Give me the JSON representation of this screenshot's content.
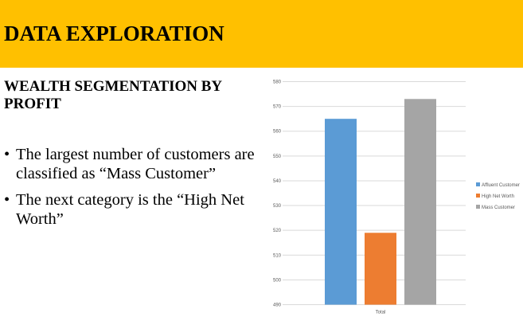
{
  "header": {
    "title": "DATA EXPLORATION",
    "background": "#FFC000"
  },
  "section": {
    "subtitle": "WEALTH SEGMENTATION BY PROFIT"
  },
  "bullets": [
    "The largest number of customers are classified as “Mass Customer”",
    "The next category is the “High Net Worth”"
  ],
  "chart_data": {
    "type": "bar",
    "categories": [
      "Total"
    ],
    "series": [
      {
        "name": "Affluent Customer",
        "values": [
          565
        ],
        "color": "#5B9BD5"
      },
      {
        "name": "High Net Worth",
        "values": [
          519
        ],
        "color": "#ED7D31"
      },
      {
        "name": "Mass Customer",
        "values": [
          573
        ],
        "color": "#A5A5A5"
      }
    ],
    "ylim": [
      490,
      580
    ],
    "yticks": [
      490,
      500,
      510,
      520,
      530,
      540,
      550,
      560,
      570,
      580
    ],
    "grid": true,
    "legend": "right"
  }
}
